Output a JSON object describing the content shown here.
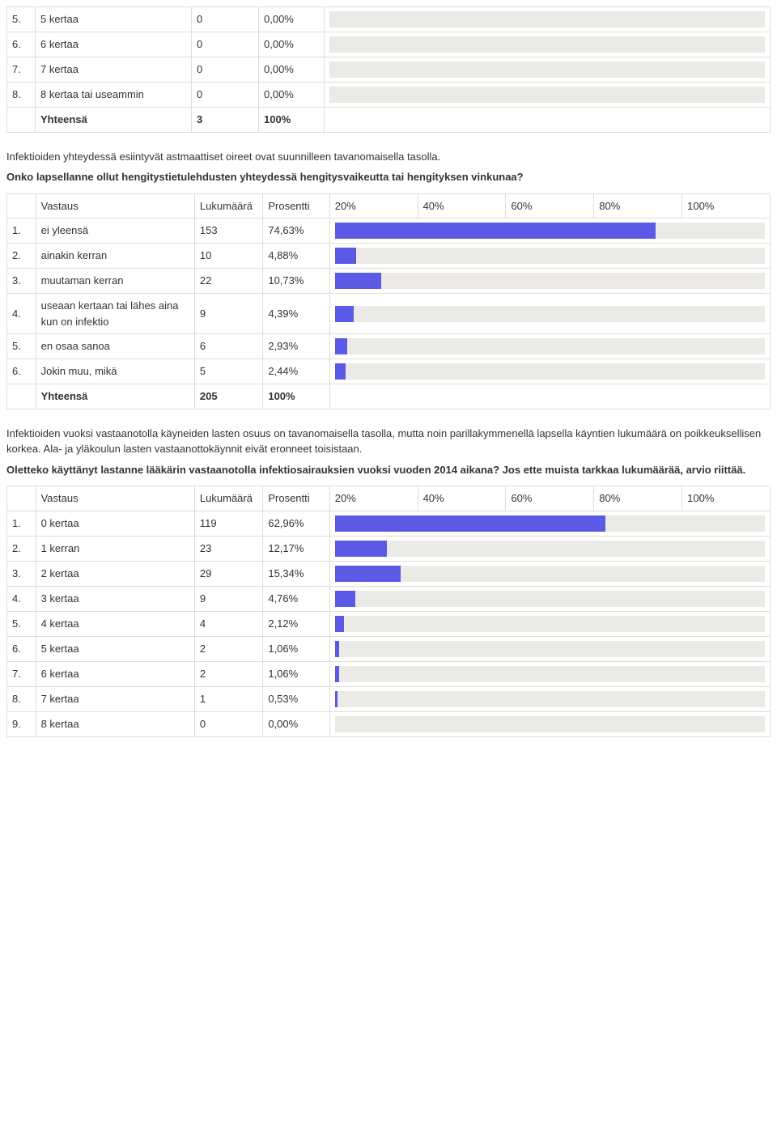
{
  "colors": {
    "bar_fill": "#5a5ae6",
    "bar_bg": "#eceae6",
    "border": "#e0ddd8",
    "text": "#333333"
  },
  "columns": {
    "vastaus": "Vastaus",
    "lukumaara": "Lukumäärä",
    "prosentti": "Prosentti",
    "ticks": [
      "20%",
      "40%",
      "60%",
      "80%",
      "100%"
    ]
  },
  "table1": {
    "rows": [
      {
        "n": "5.",
        "label": "5 kertaa",
        "count": "0",
        "pct": "0,00%",
        "bar": 0
      },
      {
        "n": "6.",
        "label": "6 kertaa",
        "count": "0",
        "pct": "0,00%",
        "bar": 0
      },
      {
        "n": "7.",
        "label": "7 kertaa",
        "count": "0",
        "pct": "0,00%",
        "bar": 0
      },
      {
        "n": "8.",
        "label": "8 kertaa tai useammin",
        "count": "0",
        "pct": "0,00%",
        "bar": 0
      }
    ],
    "total": {
      "label": "Yhteensä",
      "count": "3",
      "pct": "100%"
    }
  },
  "para1": "Infektioiden yhteydessä esiintyvät astmaattiset oireet ovat suunnilleen tavanomaisella tasolla.",
  "heading1": "Onko lapsellanne ollut hengitystietulehdusten yhteydessä hengitysvaikeutta tai hengityksen vinkunaa?",
  "table2": {
    "rows": [
      {
        "n": "1.",
        "label": "ei yleensä",
        "count": "153",
        "pct": "74,63%",
        "bar": 74.63
      },
      {
        "n": "2.",
        "label": "ainakin kerran",
        "count": "10",
        "pct": "4,88%",
        "bar": 4.88
      },
      {
        "n": "3.",
        "label": "muutaman kerran",
        "count": "22",
        "pct": "10,73%",
        "bar": 10.73
      },
      {
        "n": "4.",
        "label": "useaan kertaan tai lähes aina kun on infektio",
        "count": "9",
        "pct": "4,39%",
        "bar": 4.39
      },
      {
        "n": "5.",
        "label": "en osaa sanoa",
        "count": "6",
        "pct": "2,93%",
        "bar": 2.93
      },
      {
        "n": "6.",
        "label": "Jokin muu, mikä",
        "count": "5",
        "pct": "2,44%",
        "bar": 2.44
      }
    ],
    "total": {
      "label": "Yhteensä",
      "count": "205",
      "pct": "100%"
    }
  },
  "para2": "Infektioiden vuoksi vastaanotolla käyneiden lasten osuus on tavanomaisella tasolla, mutta noin parillakymmenellä lapsella käyntien lukumäärä on poikkeuksellisen korkea. Ala- ja yläkoulun lasten vastaanottokäynnit eivät eronneet toisistaan.",
  "heading2": "Oletteko käyttänyt lastanne lääkärin vastaanotolla infektiosairauksien vuoksi vuoden 2014 aikana? Jos ette muista tarkkaa lukumäärää, arvio riittää.",
  "table3": {
    "rows": [
      {
        "n": "1.",
        "label": "0 kertaa",
        "count": "119",
        "pct": "62,96%",
        "bar": 62.96
      },
      {
        "n": "2.",
        "label": "1 kerran",
        "count": "23",
        "pct": "12,17%",
        "bar": 12.17
      },
      {
        "n": "3.",
        "label": "2 kertaa",
        "count": "29",
        "pct": "15,34%",
        "bar": 15.34
      },
      {
        "n": "4.",
        "label": "3 kertaa",
        "count": "9",
        "pct": "4,76%",
        "bar": 4.76
      },
      {
        "n": "5.",
        "label": "4 kertaa",
        "count": "4",
        "pct": "2,12%",
        "bar": 2.12
      },
      {
        "n": "6.",
        "label": "5 kertaa",
        "count": "2",
        "pct": "1,06%",
        "bar": 1.06
      },
      {
        "n": "7.",
        "label": "6 kertaa",
        "count": "2",
        "pct": "1,06%",
        "bar": 1.06
      },
      {
        "n": "8.",
        "label": "7 kertaa",
        "count": "1",
        "pct": "0,53%",
        "bar": 0.53
      },
      {
        "n": "9.",
        "label": "8 kertaa",
        "count": "0",
        "pct": "0,00%",
        "bar": 0
      }
    ]
  }
}
